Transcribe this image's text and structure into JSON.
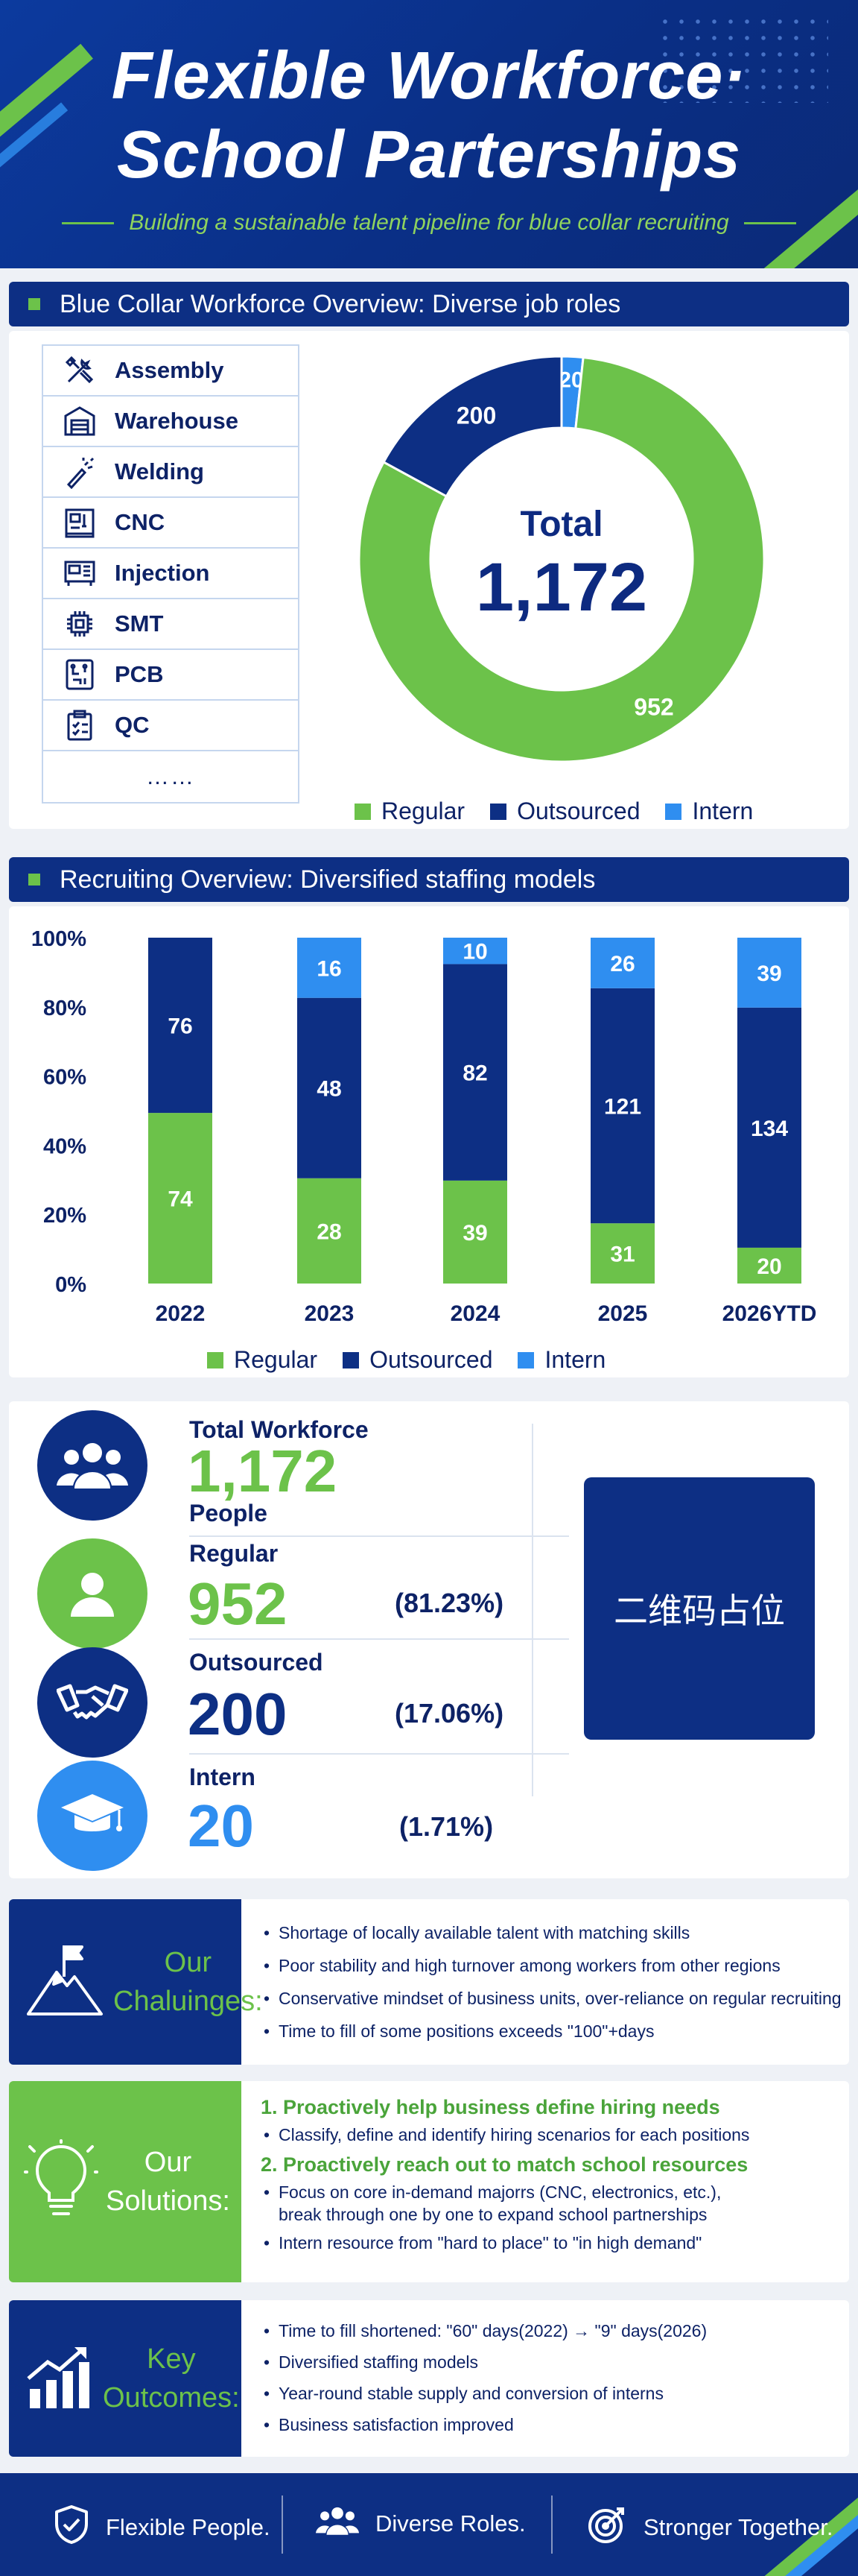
{
  "header": {
    "title_line1": "Flexible Workforce·",
    "title_line2": "School Parterships",
    "subtitle": "Building a sustainable talent pipeline for blue collar recruiting"
  },
  "overview": {
    "section_title": "Blue Collar Workforce Overview: Diverse job roles",
    "jobs": [
      {
        "label": "Assembly",
        "icon": "tools-icon"
      },
      {
        "label": "Warehouse",
        "icon": "warehouse-icon"
      },
      {
        "label": "Welding",
        "icon": "welding-torch-icon"
      },
      {
        "label": "CNC",
        "icon": "cnc-machine-icon"
      },
      {
        "label": "Injection",
        "icon": "injection-machine-icon"
      },
      {
        "label": "SMT",
        "icon": "chip-icon"
      },
      {
        "label": "PCB",
        "icon": "circuit-board-icon"
      },
      {
        "label": "QC",
        "icon": "clipboard-check-icon"
      },
      {
        "label": "……",
        "icon": ""
      }
    ],
    "total_label": "Total",
    "total_value": "1,172"
  },
  "colors": {
    "regular": "#6cc24a",
    "outsourced": "#0d2f84",
    "intern": "#2f8ef0"
  },
  "legend": [
    "Regular",
    "Outsourced",
    "Intern"
  ],
  "recruiting": {
    "section_title": "Recruiting Overview: Diversified staffing models"
  },
  "chart_data": [
    {
      "type": "pie",
      "categories": [
        "Regular",
        "Outsourced",
        "Intern"
      ],
      "values": [
        952,
        200,
        20
      ],
      "center_label": "Total",
      "center_value": "1,172"
    },
    {
      "type": "bar",
      "stacked": "percent",
      "categories": [
        "2022",
        "2023",
        "2024",
        "2025",
        "2026YTD"
      ],
      "series": [
        {
          "name": "Regular",
          "values": [
            74,
            28,
            39,
            31,
            20
          ]
        },
        {
          "name": "Outsourced",
          "values": [
            76,
            48,
            82,
            121,
            134
          ]
        },
        {
          "name": "Intern",
          "values": [
            0,
            16,
            10,
            26,
            39
          ]
        }
      ],
      "ytick_labels": [
        "100%",
        "80%",
        "60%",
        "40%",
        "20%",
        "0%"
      ],
      "ylim": [
        0,
        100
      ]
    }
  ],
  "stats": {
    "total": {
      "label": "Total Workforce",
      "value": "1,172",
      "unit": "People",
      "icon": "people-group-icon"
    },
    "regular": {
      "label": "Regular",
      "value": "952",
      "pct": "(81.23%)",
      "icon": "person-icon"
    },
    "outsourced": {
      "label": "Outsourced",
      "value": "200",
      "pct": "(17.06%)",
      "icon": "handshake-icon"
    },
    "intern": {
      "label": "Intern",
      "value": "20",
      "pct": "(1.71%)",
      "icon": "graduation-cap-icon"
    },
    "qr_placeholder": "二维码占位"
  },
  "challenges": {
    "title_line1": "Our",
    "title_line2": "Chaluinges:",
    "items": [
      "Shortage of locally available talent with matching skills",
      "Poor stability and high turnover among workers from other regions",
      "Conservative mindset of business units, over-reliance on regular recruiting",
      "Time to fill of some positions exceeds \"100\"+days"
    ]
  },
  "solutions": {
    "title_line1": "Our",
    "title_line2": "Solutions:",
    "h1": "1. Proactively help business define hiring needs",
    "h1_items": [
      "Classify, define and identify hiring scenarios for each positions"
    ],
    "h2": "2. Proactively reach out to match school resources",
    "h2_items": [
      "Focus on core in-demand majorrs (CNC, electronics, etc.),",
      "break through one by one to expand school partnerships",
      "Intern resource from \"hard to place\" to \"in high demand\""
    ]
  },
  "outcomes": {
    "title_line1": "Key",
    "title_line2": "Outcomes:",
    "items": [
      "Time to fill shortened: \"60\" days(2022) → \"9\" days(2026)",
      "Diversified staffing models",
      "Year-round stable supply and conversion of interns",
      "Business satisfaction improved"
    ]
  },
  "footer": {
    "items": [
      {
        "label": "Flexible People.",
        "icon": "shield-check-icon"
      },
      {
        "label": "Diverse Roles.",
        "icon": "people-group-icon"
      },
      {
        "label": "Stronger Together.",
        "icon": "target-icon"
      }
    ]
  }
}
